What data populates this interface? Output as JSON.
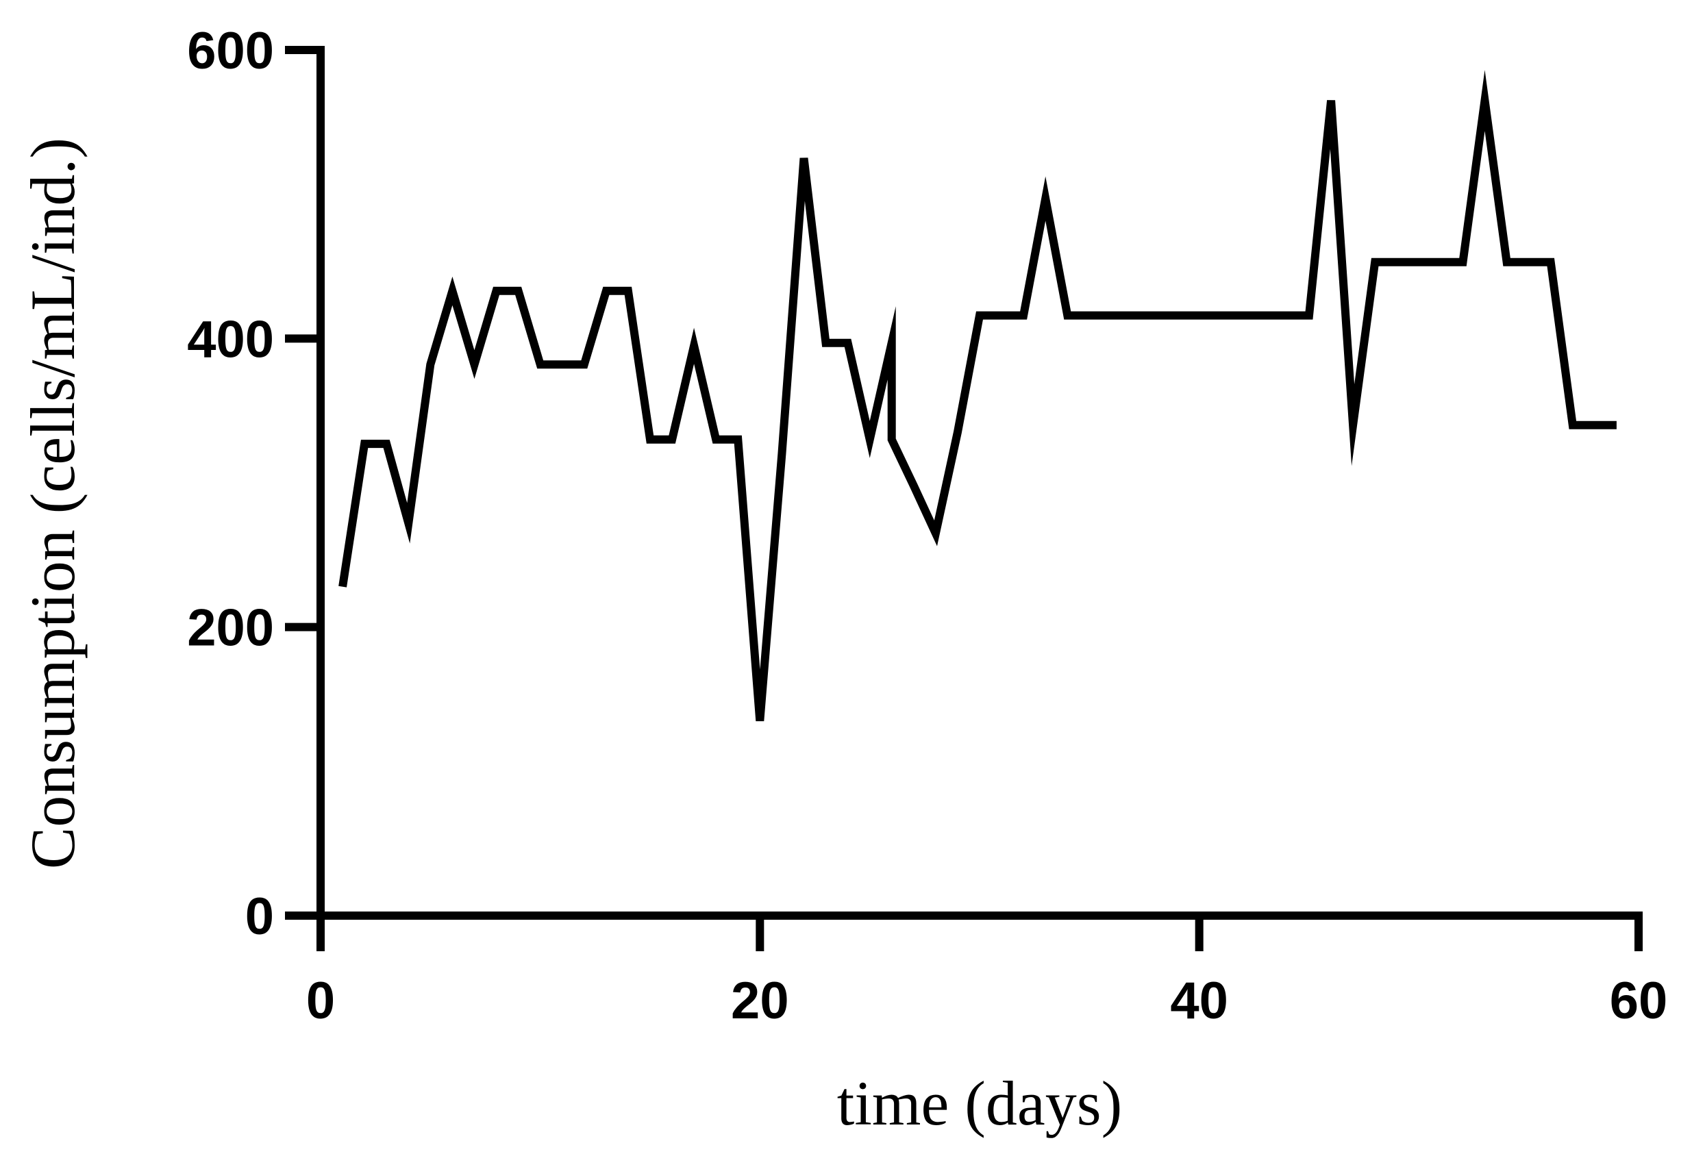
{
  "chart_data": {
    "type": "line",
    "title": "",
    "xlabel": "time (days)",
    "ylabel": "Consumption (cells/mL/ind.)",
    "xlim": [
      0,
      60
    ],
    "ylim": [
      0,
      600
    ],
    "xticks": [
      0,
      20,
      40,
      60
    ],
    "yticks": [
      0,
      200,
      400,
      600
    ],
    "grid": false,
    "legend": "none",
    "line_color": "#000000",
    "series": [
      {
        "x": [
          1,
          2,
          3,
          4,
          5,
          6,
          7,
          8,
          9,
          10,
          11,
          12,
          13,
          14,
          15,
          16,
          17,
          18,
          19,
          20,
          21,
          22,
          23,
          24,
          25,
          26,
          26,
          27,
          28,
          29,
          30,
          31,
          32,
          33,
          34,
          35,
          36,
          37,
          38,
          39,
          40,
          41,
          42,
          43,
          44,
          45,
          46,
          47,
          48,
          49,
          50,
          51,
          52,
          53,
          54,
          55,
          56,
          57,
          58,
          59
        ],
        "y": [
          228,
          327,
          327,
          272,
          382,
          433,
          382,
          433,
          433,
          382,
          382,
          382,
          433,
          433,
          330,
          330,
          395,
          330,
          330,
          135,
          320,
          525,
          397,
          397,
          330,
          397,
          330,
          298,
          265,
          335,
          416,
          416,
          416,
          497,
          416,
          416,
          416,
          416,
          416,
          416,
          416,
          416,
          416,
          416,
          416,
          416,
          565,
          340,
          453,
          453,
          453,
          453,
          453,
          565,
          453,
          453,
          453,
          340,
          340,
          340
        ]
      }
    ]
  }
}
